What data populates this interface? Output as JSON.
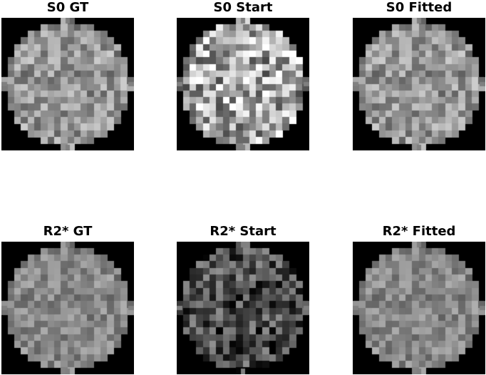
{
  "panels": [
    {
      "title": "S0 GT",
      "variant": "gt"
    },
    {
      "title": "S0 Start",
      "variant": "start_s0"
    },
    {
      "title": "S0 Fitted",
      "variant": "gt"
    },
    {
      "title": "R2* GT",
      "variant": "r2gt"
    },
    {
      "title": "R2* Start",
      "variant": "start_r2"
    },
    {
      "title": "R2* Fitted",
      "variant": "r2gt"
    }
  ]
}
